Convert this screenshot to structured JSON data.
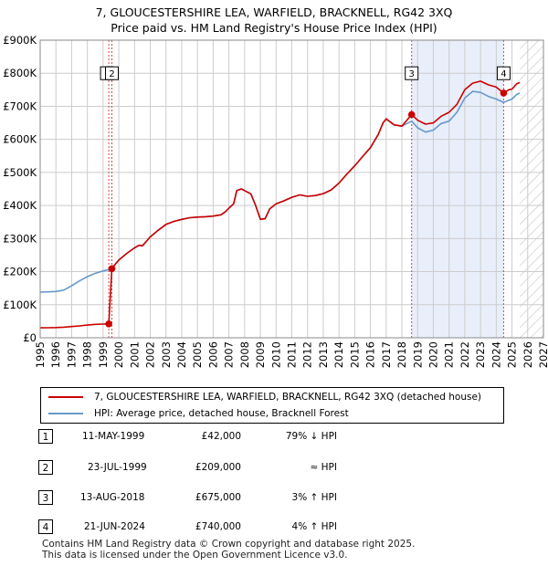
{
  "title_line1": "7, GLOUCESTERSHIRE LEA, WARFIELD, BRACKNELL, RG42 3XQ",
  "title_line2": "Price paid vs. HM Land Registry's House Price Index (HPI)",
  "colors": {
    "price": "#cc0000",
    "hpi": "#6699cc",
    "shade": "#e8eefa",
    "grid": "#cccccc",
    "marker_line": "#dd4444"
  },
  "chart_data": {
    "type": "line",
    "xlim": [
      1995,
      2027
    ],
    "ylim": [
      0,
      900000
    ],
    "y_ticks": [
      {
        "value": 0,
        "label": "£0"
      },
      {
        "value": 100000,
        "label": "£100K"
      },
      {
        "value": 200000,
        "label": "£200K"
      },
      {
        "value": 300000,
        "label": "£300K"
      },
      {
        "value": 400000,
        "label": "£400K"
      },
      {
        "value": 500000,
        "label": "£500K"
      },
      {
        "value": 600000,
        "label": "£600K"
      },
      {
        "value": 700000,
        "label": "£700K"
      },
      {
        "value": 800000,
        "label": "£800K"
      },
      {
        "value": 900000,
        "label": "£900K"
      }
    ],
    "x_ticks": [
      "1995",
      "1996",
      "1997",
      "1998",
      "1999",
      "2000",
      "2001",
      "2002",
      "2003",
      "2004",
      "2005",
      "2006",
      "2007",
      "2008",
      "2009",
      "2010",
      "2011",
      "2012",
      "2013",
      "2014",
      "2015",
      "2016",
      "2017",
      "2018",
      "2019",
      "2020",
      "2021",
      "2022",
      "2023",
      "2024",
      "2025",
      "2026",
      "2027"
    ],
    "data_end": 2025.5,
    "shaded_ranges": [
      [
        2018.62,
        2024.47
      ]
    ],
    "series": [
      {
        "name": "7, GLOUCESTERSHIRE LEA, WARFIELD, BRACKNELL, RG42 3XQ (detached house)",
        "color": "#cc0000",
        "points": [
          [
            1995.0,
            30000
          ],
          [
            1995.5,
            30500
          ],
          [
            1996.0,
            31000
          ],
          [
            1996.5,
            32000
          ],
          [
            1997.0,
            34000
          ],
          [
            1997.5,
            36000
          ],
          [
            1998.0,
            38500
          ],
          [
            1998.5,
            40500
          ],
          [
            1999.0,
            41500
          ],
          [
            1999.36,
            42000
          ],
          [
            1999.56,
            209000
          ],
          [
            1999.8,
            224000
          ],
          [
            2000.0,
            235000
          ],
          [
            2000.5,
            255000
          ],
          [
            2001.0,
            272000
          ],
          [
            2001.3,
            280000
          ],
          [
            2001.5,
            278000
          ],
          [
            2002.0,
            305000
          ],
          [
            2002.5,
            325000
          ],
          [
            2003.0,
            343000
          ],
          [
            2003.5,
            352000
          ],
          [
            2004.0,
            358000
          ],
          [
            2004.5,
            363000
          ],
          [
            2005.0,
            365000
          ],
          [
            2005.5,
            366000
          ],
          [
            2006.0,
            368000
          ],
          [
            2006.5,
            372000
          ],
          [
            2006.8,
            382000
          ],
          [
            2007.0,
            392000
          ],
          [
            2007.3,
            405000
          ],
          [
            2007.5,
            445000
          ],
          [
            2007.8,
            450000
          ],
          [
            2008.0,
            445000
          ],
          [
            2008.4,
            435000
          ],
          [
            2008.7,
            400000
          ],
          [
            2009.0,
            358000
          ],
          [
            2009.3,
            360000
          ],
          [
            2009.6,
            390000
          ],
          [
            2010.0,
            405000
          ],
          [
            2010.5,
            414000
          ],
          [
            2011.0,
            425000
          ],
          [
            2011.5,
            432000
          ],
          [
            2012.0,
            428000
          ],
          [
            2012.5,
            430000
          ],
          [
            2013.0,
            436000
          ],
          [
            2013.5,
            447000
          ],
          [
            2014.0,
            468000
          ],
          [
            2014.5,
            495000
          ],
          [
            2015.0,
            520000
          ],
          [
            2015.5,
            548000
          ],
          [
            2016.0,
            575000
          ],
          [
            2016.5,
            615000
          ],
          [
            2016.8,
            650000
          ],
          [
            2017.0,
            662000
          ],
          [
            2017.5,
            644000
          ],
          [
            2018.0,
            640000
          ],
          [
            2018.62,
            675000
          ],
          [
            2019.0,
            658000
          ],
          [
            2019.5,
            646000
          ],
          [
            2020.0,
            650000
          ],
          [
            2020.5,
            670000
          ],
          [
            2021.0,
            682000
          ],
          [
            2021.5,
            706000
          ],
          [
            2022.0,
            750000
          ],
          [
            2022.5,
            770000
          ],
          [
            2023.0,
            776000
          ],
          [
            2023.5,
            765000
          ],
          [
            2024.0,
            758000
          ],
          [
            2024.47,
            740000
          ],
          [
            2024.8,
            750000
          ],
          [
            2025.0,
            752000
          ],
          [
            2025.3,
            768000
          ],
          [
            2025.5,
            772000
          ]
        ]
      },
      {
        "name": "HPI: Average price, detached house, Bracknell Forest",
        "color": "#6699cc",
        "points": [
          [
            1995.0,
            138000
          ],
          [
            1995.5,
            139000
          ],
          [
            1996.0,
            140000
          ],
          [
            1996.5,
            144000
          ],
          [
            1997.0,
            157000
          ],
          [
            1997.5,
            172000
          ],
          [
            1998.0,
            185000
          ],
          [
            1998.5,
            195000
          ],
          [
            1999.0,
            202000
          ],
          [
            1999.56,
            209000
          ],
          [
            2000.0,
            235000
          ],
          [
            2000.5,
            255000
          ],
          [
            2001.0,
            272000
          ],
          [
            2001.3,
            280000
          ],
          [
            2001.5,
            278000
          ],
          [
            2002.0,
            305000
          ],
          [
            2002.5,
            325000
          ],
          [
            2003.0,
            343000
          ],
          [
            2003.5,
            352000
          ],
          [
            2004.0,
            358000
          ],
          [
            2004.5,
            363000
          ],
          [
            2005.0,
            365000
          ],
          [
            2005.5,
            366000
          ],
          [
            2006.0,
            368000
          ],
          [
            2006.5,
            372000
          ],
          [
            2006.8,
            382000
          ],
          [
            2007.0,
            392000
          ],
          [
            2007.3,
            405000
          ],
          [
            2007.5,
            445000
          ],
          [
            2007.8,
            450000
          ],
          [
            2008.0,
            445000
          ],
          [
            2008.4,
            435000
          ],
          [
            2008.7,
            400000
          ],
          [
            2009.0,
            358000
          ],
          [
            2009.3,
            360000
          ],
          [
            2009.6,
            390000
          ],
          [
            2010.0,
            405000
          ],
          [
            2010.5,
            414000
          ],
          [
            2011.0,
            425000
          ],
          [
            2011.5,
            432000
          ],
          [
            2012.0,
            428000
          ],
          [
            2012.5,
            430000
          ],
          [
            2013.0,
            436000
          ],
          [
            2013.5,
            447000
          ],
          [
            2014.0,
            468000
          ],
          [
            2014.5,
            495000
          ],
          [
            2015.0,
            520000
          ],
          [
            2015.5,
            548000
          ],
          [
            2016.0,
            575000
          ],
          [
            2016.5,
            615000
          ],
          [
            2016.8,
            650000
          ],
          [
            2017.0,
            662000
          ],
          [
            2017.5,
            644000
          ],
          [
            2018.0,
            640000
          ],
          [
            2018.62,
            655000
          ],
          [
            2019.0,
            635000
          ],
          [
            2019.5,
            622000
          ],
          [
            2020.0,
            628000
          ],
          [
            2020.5,
            648000
          ],
          [
            2021.0,
            655000
          ],
          [
            2021.5,
            682000
          ],
          [
            2022.0,
            725000
          ],
          [
            2022.5,
            745000
          ],
          [
            2023.0,
            742000
          ],
          [
            2023.5,
            730000
          ],
          [
            2024.0,
            722000
          ],
          [
            2024.47,
            712000
          ],
          [
            2024.8,
            718000
          ],
          [
            2025.0,
            722000
          ],
          [
            2025.3,
            736000
          ],
          [
            2025.5,
            740000
          ]
        ]
      }
    ],
    "sales_markers": [
      {
        "label": "1",
        "x": 1999.36,
        "y": 42000
      },
      {
        "label": "2",
        "x": 1999.56,
        "y": 209000
      },
      {
        "label": "3",
        "x": 2018.62,
        "y": 675000
      },
      {
        "label": "4",
        "x": 2024.47,
        "y": 740000
      }
    ],
    "marker_label_y": 800000
  },
  "legend": {
    "price_label": "7, GLOUCESTERSHIRE LEA, WARFIELD, BRACKNELL, RG42 3XQ (detached house)",
    "hpi_label": "HPI: Average price, detached house, Bracknell Forest"
  },
  "sales": [
    {
      "num": "1",
      "date": "11-MAY-1999",
      "price": "£42,000",
      "hpi": "79% ↓ HPI"
    },
    {
      "num": "2",
      "date": "23-JUL-1999",
      "price": "£209,000",
      "hpi": "≈ HPI"
    },
    {
      "num": "3",
      "date": "13-AUG-2018",
      "price": "£675,000",
      "hpi": "3% ↑ HPI"
    },
    {
      "num": "4",
      "date": "21-JUN-2024",
      "price": "£740,000",
      "hpi": "4% ↑ HPI"
    }
  ],
  "footer": {
    "line1": "Contains HM Land Registry data © Crown copyright and database right 2025.",
    "line2": "This data is licensed under the Open Government Licence v3.0."
  }
}
